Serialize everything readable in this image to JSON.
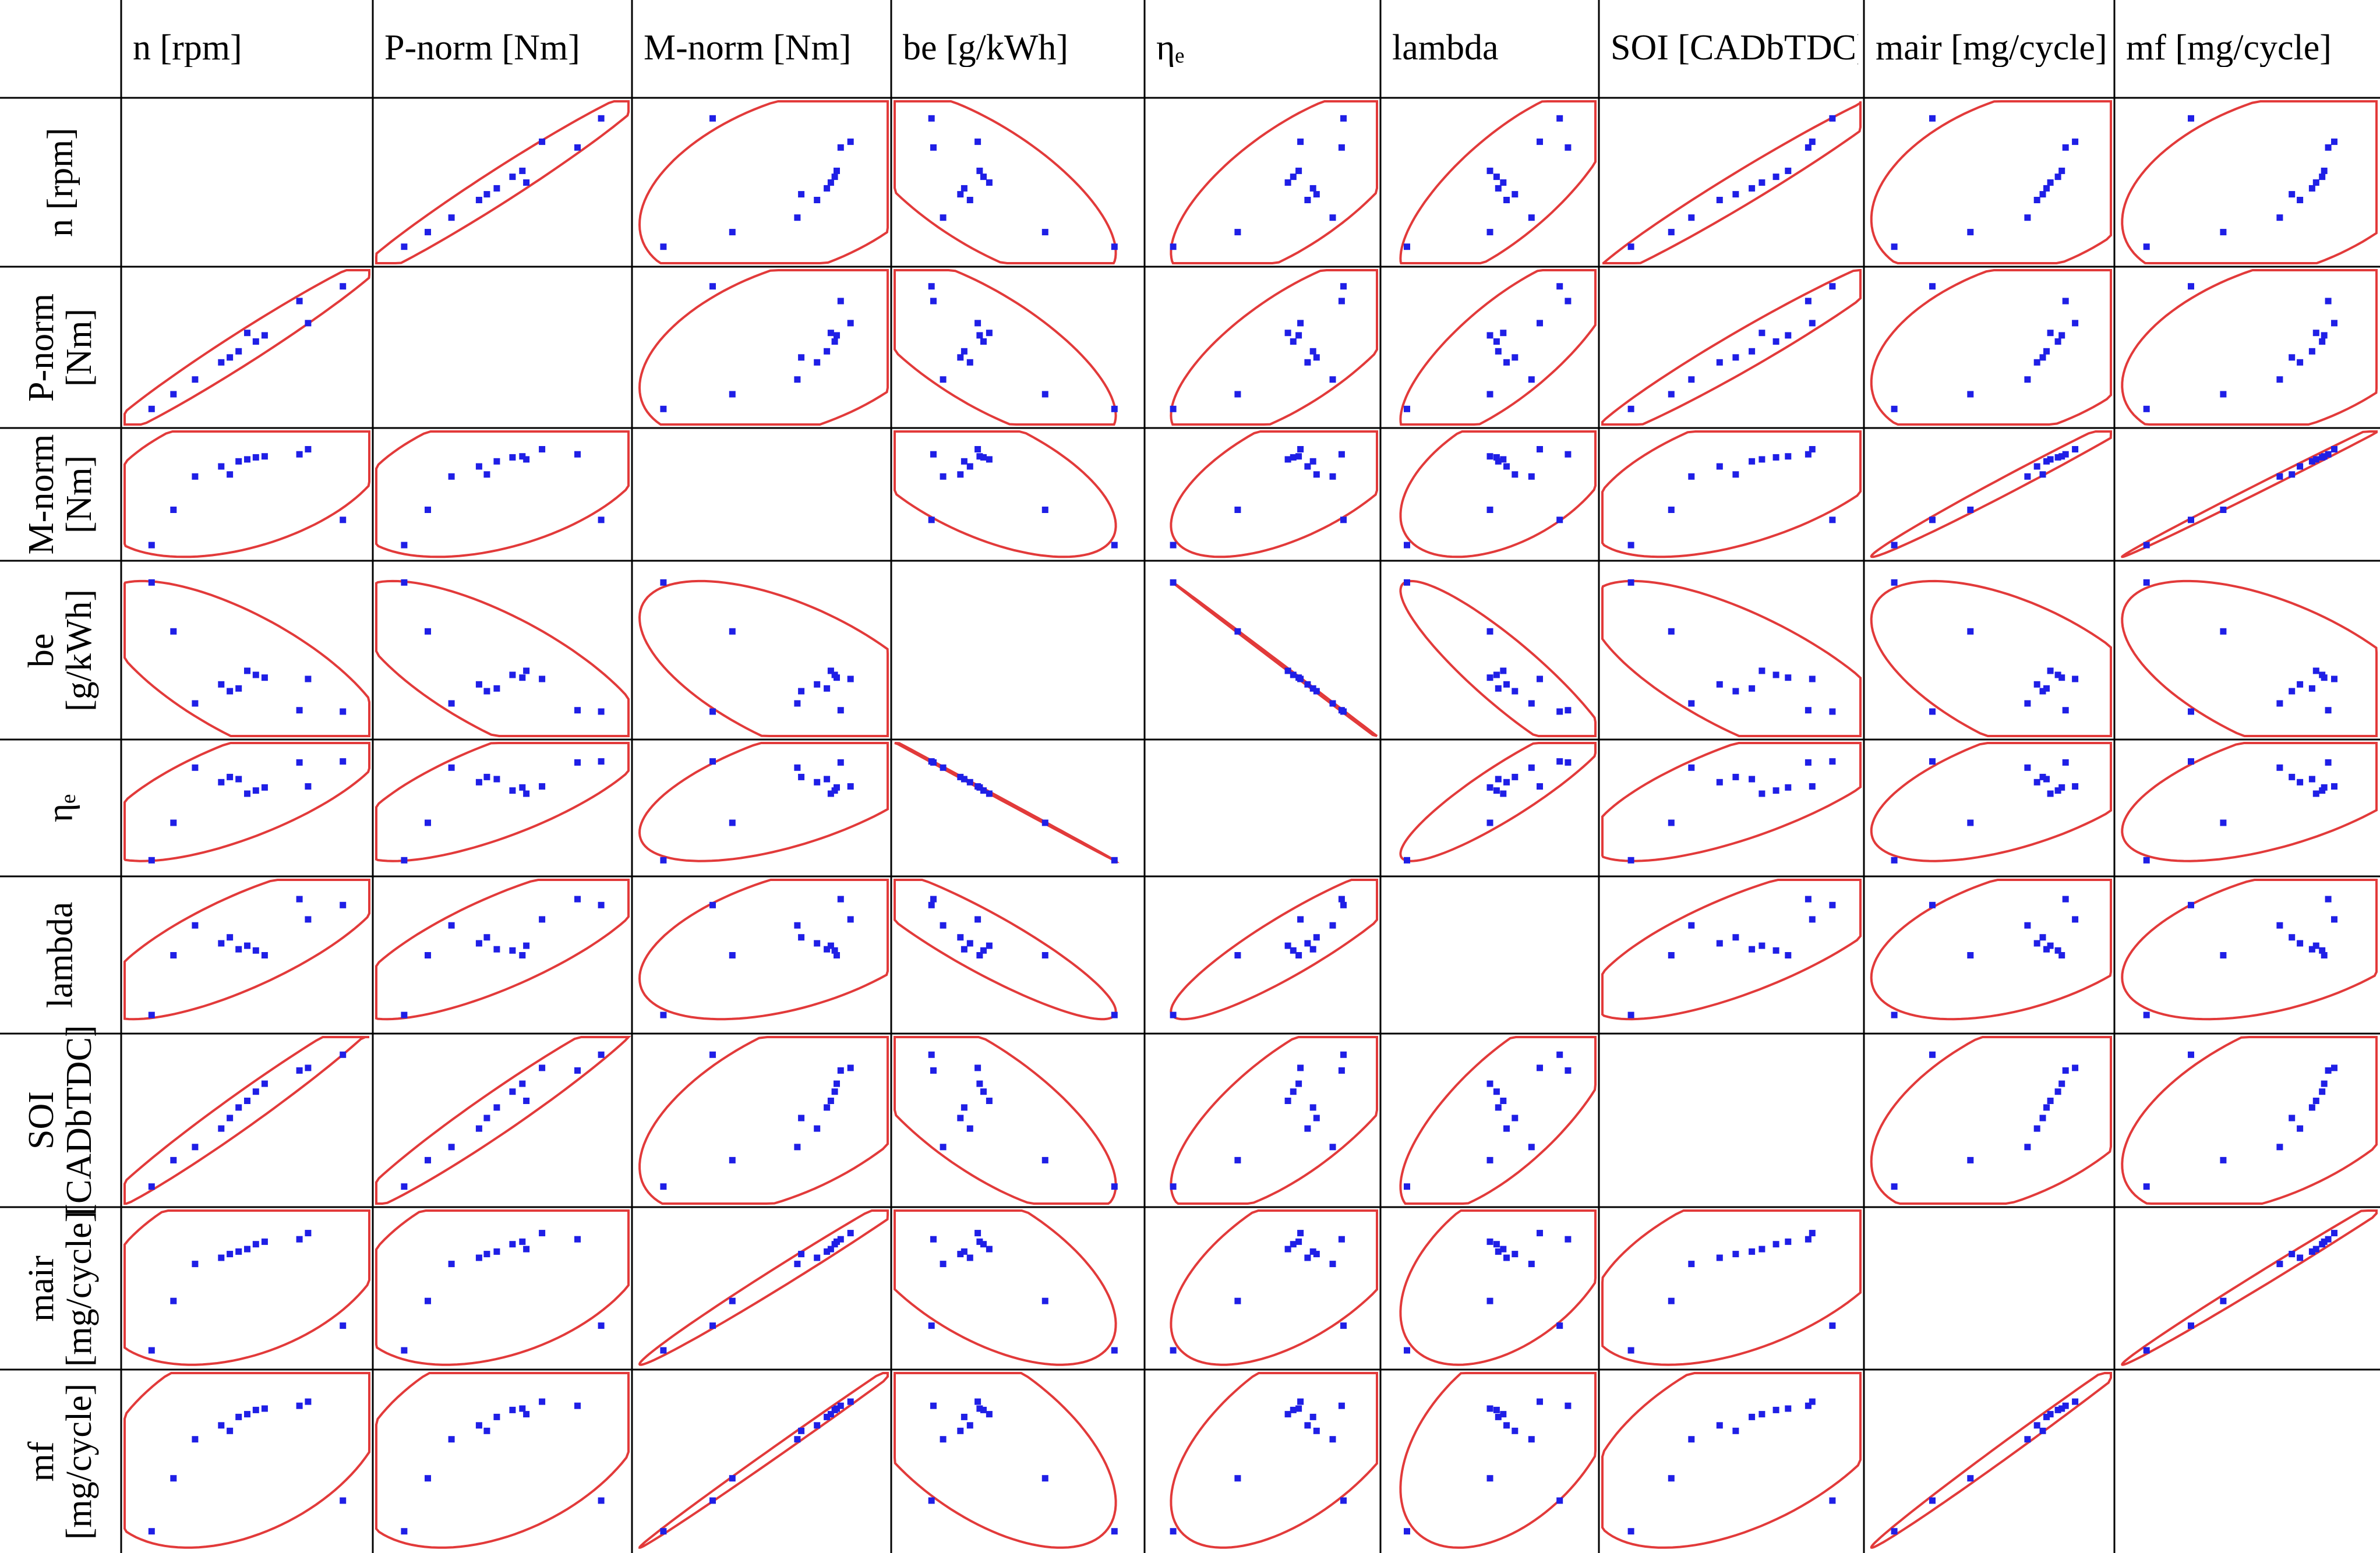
{
  "chart_data": {
    "type": "scatter",
    "layout": "scatterplot-matrix",
    "variables": [
      {
        "key": "n",
        "column_label": "n [rpm]",
        "row_label_lines": [
          "n [rpm]"
        ]
      },
      {
        "key": "P_norm",
        "column_label": "P-norm [Nm]",
        "row_label_lines": [
          "P-norm",
          "[Nm]"
        ]
      },
      {
        "key": "M_norm",
        "column_label": "M-norm [Nm]",
        "row_label_lines": [
          "M-norm",
          "[Nm]"
        ]
      },
      {
        "key": "be",
        "column_label": "be [g/kWh]",
        "row_label_lines": [
          "be",
          "[g/kWh]"
        ]
      },
      {
        "key": "eta_e",
        "column_label": "ηₑ",
        "row_label_lines": [
          "ηₑ"
        ]
      },
      {
        "key": "lambda",
        "column_label": "lambda",
        "row_label_lines": [
          "lambda"
        ]
      },
      {
        "key": "SOI",
        "column_label": "SOI [CADbTDC]",
        "row_label_lines": [
          "SOI",
          "[CADbTDC]"
        ]
      },
      {
        "key": "mair",
        "column_label": "mair [mg/cycle]",
        "row_label_lines": [
          "mair",
          "[mg/cycle]"
        ]
      },
      {
        "key": "mf",
        "column_label": "mf [mg/cycle]",
        "row_label_lines": [
          "mf",
          "[mg/cycle]"
        ]
      }
    ],
    "normalized_data": {
      "n": [
        0.0,
        0.114,
        0.227,
        0.364,
        0.409,
        0.455,
        0.5,
        0.545,
        0.591,
        0.773,
        0.818,
        1.0
      ],
      "P_norm": [
        0.0,
        0.12,
        0.24,
        0.38,
        0.42,
        0.47,
        0.62,
        0.55,
        0.6,
        0.88,
        0.7,
        1.0
      ],
      "M_norm": [
        0.0,
        0.35,
        0.68,
        0.78,
        0.7,
        0.83,
        0.85,
        0.87,
        0.88,
        0.9,
        0.95,
        0.25
      ],
      "be": [
        1.0,
        0.64,
        0.11,
        0.25,
        0.2,
        0.22,
        0.35,
        0.32,
        0.3,
        0.06,
        0.29,
        0.05
      ],
      "eta_e": [
        0.0,
        0.36,
        0.89,
        0.75,
        0.8,
        0.78,
        0.64,
        0.67,
        0.7,
        0.94,
        0.71,
        0.95
      ],
      "lambda": [
        0.0,
        0.5,
        0.75,
        0.6,
        0.65,
        0.55,
        0.58,
        0.54,
        0.5,
        0.97,
        0.8,
        0.92
      ],
      "SOI": [
        0.0,
        0.2,
        0.3,
        0.44,
        0.52,
        0.6,
        0.65,
        0.72,
        0.78,
        0.88,
        0.9,
        1.0
      ],
      "mair": [
        0.0,
        0.4,
        0.7,
        0.75,
        0.78,
        0.8,
        0.82,
        0.86,
        0.88,
        0.9,
        0.95,
        0.2
      ],
      "mf": [
        0.0,
        0.38,
        0.66,
        0.76,
        0.72,
        0.82,
        0.84,
        0.87,
        0.88,
        0.9,
        0.93,
        0.22
      ]
    },
    "diagonal": "empty",
    "point_color": "#1f1fe6",
    "ellipse_color": "#e23a3a",
    "grid": true,
    "legend": "none"
  }
}
